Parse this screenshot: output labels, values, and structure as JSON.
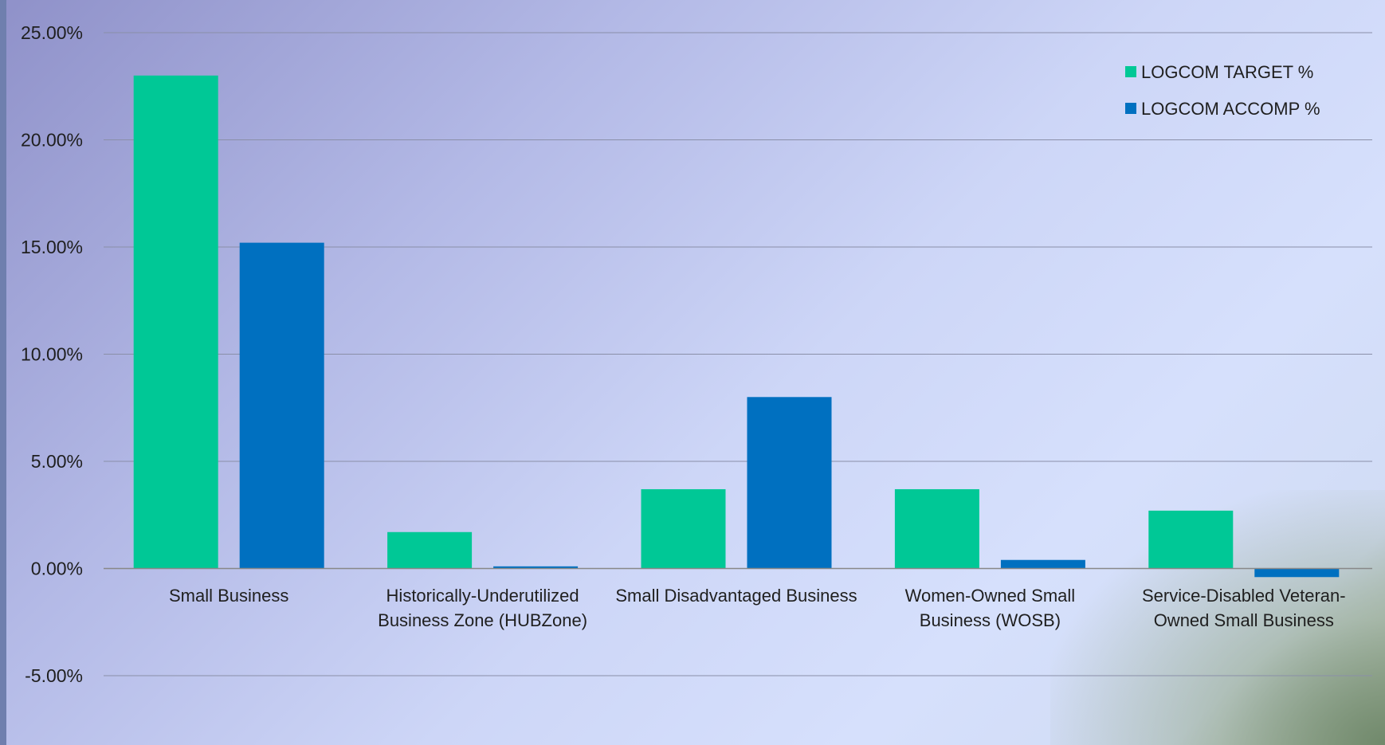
{
  "chart_data": {
    "type": "bar",
    "categories": [
      [
        "Small Business"
      ],
      [
        "Historically-Underutilized",
        "Business Zone (HUBZone)"
      ],
      [
        "Small Disadvantaged Business"
      ],
      [
        "Women-Owned Small",
        "Business (WOSB)"
      ],
      [
        "Service-Disabled Veteran-",
        "Owned Small Business"
      ]
    ],
    "series": [
      {
        "name": "LOGCOM TARGET %",
        "color": "#00c896",
        "values": [
          23.0,
          1.7,
          3.7,
          3.7,
          2.7
        ]
      },
      {
        "name": "LOGCOM ACCOMP %",
        "color": "#0070c0",
        "values": [
          15.2,
          0.1,
          8.0,
          0.4,
          -0.4
        ]
      }
    ],
    "ylim": [
      -5,
      25
    ],
    "yticks": [
      25,
      20,
      15,
      10,
      5,
      0,
      -5
    ],
    "ytick_labels": [
      "25.00%",
      "20.00%",
      "15.00%",
      "10.00%",
      "5.00%",
      "0.00%",
      "-5.00%"
    ],
    "grid": true,
    "legend_position": "top-right",
    "title": "",
    "xlabel": "",
    "ylabel": ""
  }
}
